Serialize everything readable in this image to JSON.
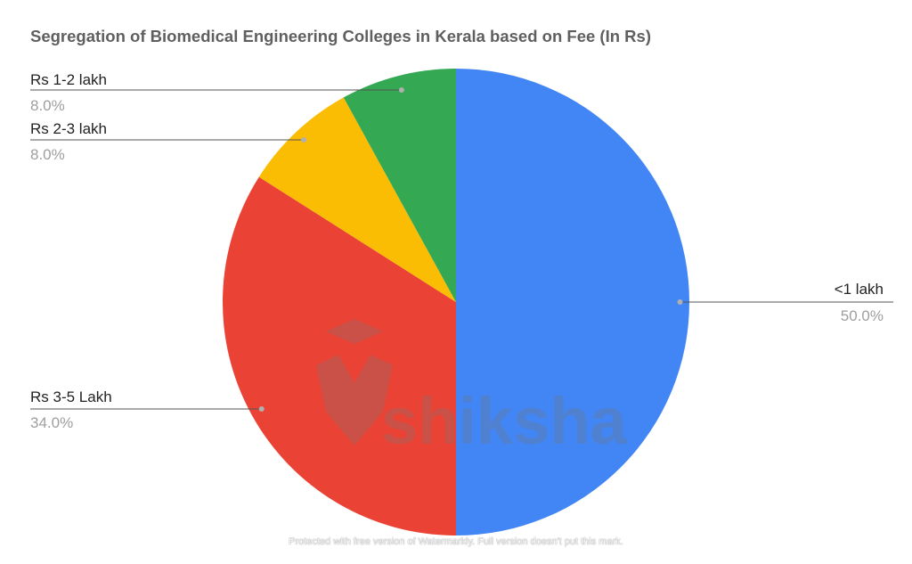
{
  "chart_data": {
    "type": "pie",
    "title": "Segregation of Biomedical Engineering Colleges in Kerala based on Fee (In Rs)",
    "slices": [
      {
        "label": "<1 lakh",
        "value": 50.0,
        "percent_label": "50.0%",
        "color": "#4285f4"
      },
      {
        "label": "Rs 3-5 Lakh",
        "value": 34.0,
        "percent_label": "34.0%",
        "color": "#ea4335"
      },
      {
        "label": "Rs 2-3 lakh",
        "value": 8.0,
        "percent_label": "8.0%",
        "color": "#fbbc04"
      },
      {
        "label": "Rs 1-2 lakh",
        "value": 8.0,
        "percent_label": "8.0%",
        "color": "#34a853"
      }
    ],
    "start": "12 o'clock",
    "direction": "clockwise",
    "legend": "outside labels with leader lines"
  },
  "watermark": {
    "text": "shiksha",
    "color": "#777777"
  },
  "footer_note": "Protected with free version of Watermarkly. Full version doesn't put this mark."
}
